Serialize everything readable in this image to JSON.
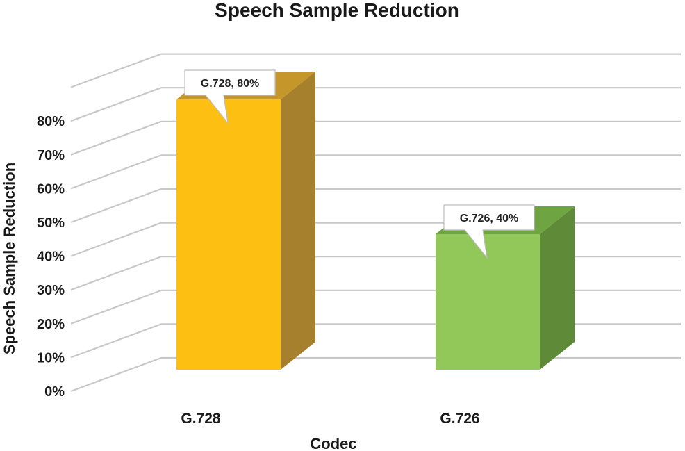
{
  "chart_data": {
    "type": "bar",
    "style": "3d-column",
    "title": "Speech Sample Reduction",
    "xlabel": "Codec",
    "ylabel": "Speech Sample Reduction",
    "categories": [
      "G.728",
      "G.726"
    ],
    "values": [
      80,
      40
    ],
    "value_unit": "%",
    "ylim": [
      0,
      80
    ],
    "yticks": [
      "0%",
      "10%",
      "20%",
      "30%",
      "40%",
      "50%",
      "60%",
      "70%",
      "80%"
    ],
    "data_labels": [
      "G.728, 80%",
      "G.726, 40%"
    ],
    "bar_colors": [
      "#FDBF12",
      "#92C75A"
    ],
    "bar_side_colors": [
      "#A7802D",
      "#5F8B38"
    ],
    "bar_top_colors": [
      "#C59629",
      "#6FA443"
    ],
    "grid": true,
    "legend": "none"
  }
}
